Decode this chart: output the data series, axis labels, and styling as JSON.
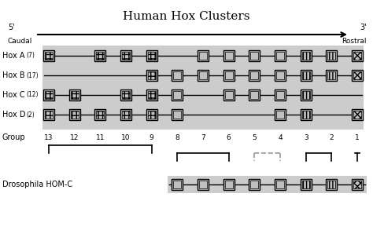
{
  "title": "Human Hox Clusters",
  "bg_color": "#ffffff",
  "gray_bg": "#cccccc",
  "clusters": [
    {
      "name": "Hox A",
      "num": "(7)",
      "genes": [
        13,
        11,
        10,
        9,
        7,
        6,
        5,
        4,
        3,
        2,
        1
      ]
    },
    {
      "name": "Hox B",
      "num": "(17)",
      "genes": [
        9,
        8,
        7,
        6,
        5,
        4,
        3,
        2,
        1
      ]
    },
    {
      "name": "Hox C",
      "num": "(12)",
      "genes": [
        13,
        12,
        10,
        9,
        8,
        6,
        5,
        4,
        3
      ]
    },
    {
      "name": "Hox D",
      "num": "(2)",
      "genes": [
        13,
        12,
        11,
        10,
        9,
        8,
        4,
        3,
        1
      ]
    }
  ],
  "drosophila_name": "Drosophila HOM-C",
  "drosophila_genes": [
    8,
    7,
    6,
    5,
    4,
    3,
    2,
    1
  ],
  "groups": [
    13,
    12,
    11,
    10,
    9,
    8,
    7,
    6,
    5,
    4,
    3,
    2,
    1
  ]
}
